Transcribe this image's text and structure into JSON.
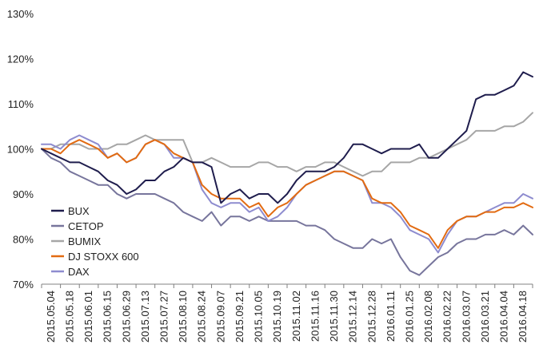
{
  "chart_data": {
    "type": "line",
    "xlabel": "",
    "ylabel": "",
    "ylim": [
      70,
      130
    ],
    "yticks": [
      70,
      80,
      90,
      100,
      110,
      120,
      130
    ],
    "ytick_labels": [
      "70%",
      "80%",
      "90%",
      "100%",
      "110%",
      "120%",
      "130%"
    ],
    "xlim": [
      0,
      52
    ],
    "xtick_labels": [
      "2015.05.04",
      "2015.05.18",
      "2015.06.01",
      "2015.06.15",
      "2015.06.29",
      "2015.07.13",
      "2015.07.27",
      "2015.08.10",
      "2015.08.24",
      "2015.09.07",
      "2015.09.21",
      "2015.10.05",
      "2015.10.19",
      "2015.11.02",
      "2015.11.16",
      "2015.11.30",
      "2015.12.14",
      "2015.12.28",
      "2016.01.11",
      "2016.01.25",
      "2016.02.08",
      "2016.02.22",
      "2016.03.07",
      "2016.03.21",
      "2016.04.04",
      "2016.04.18"
    ],
    "grid": false,
    "legend_position": "left",
    "series": [
      {
        "name": "BUX",
        "color": "#1f1d4d",
        "x": [
          0,
          1,
          2,
          3,
          4,
          5,
          6,
          7,
          8,
          9,
          10,
          11,
          12,
          13,
          14,
          15,
          16,
          17,
          18,
          19,
          20,
          21,
          22,
          23,
          24,
          25,
          26,
          27,
          28,
          29,
          30,
          31,
          32,
          33,
          34,
          35,
          36,
          37,
          38,
          39,
          40,
          41,
          42,
          43,
          44,
          45,
          46,
          47,
          48,
          49,
          50,
          51,
          52
        ],
        "values": [
          100,
          99,
          98,
          97,
          97,
          96,
          95,
          93,
          92,
          90,
          91,
          93,
          93,
          95,
          96,
          98,
          97,
          97,
          96,
          88,
          90,
          91,
          89,
          90,
          90,
          88,
          90,
          93,
          95,
          95,
          95,
          96,
          98,
          101,
          101,
          100,
          99,
          100,
          100,
          100,
          101,
          98,
          98,
          100,
          102,
          104,
          111,
          112,
          112,
          113,
          114,
          117,
          116
        ]
      },
      {
        "name": "CETOP",
        "color": "#77759c",
        "x": [
          0,
          1,
          2,
          3,
          4,
          5,
          6,
          7,
          8,
          9,
          10,
          11,
          12,
          13,
          14,
          15,
          16,
          17,
          18,
          19,
          20,
          21,
          22,
          23,
          24,
          25,
          26,
          27,
          28,
          29,
          30,
          31,
          32,
          33,
          34,
          35,
          36,
          37,
          38,
          39,
          40,
          41,
          42,
          43,
          44,
          45,
          46,
          47,
          48,
          49,
          50,
          51,
          52
        ],
        "values": [
          100,
          98,
          97,
          95,
          94,
          93,
          92,
          92,
          90,
          89,
          90,
          90,
          90,
          89,
          88,
          86,
          85,
          84,
          86,
          83,
          85,
          85,
          84,
          85,
          84,
          84,
          84,
          84,
          83,
          83,
          82,
          80,
          79,
          78,
          78,
          80,
          79,
          80,
          76,
          73,
          72,
          74,
          76,
          77,
          79,
          80,
          80,
          81,
          81,
          82,
          81,
          83,
          81
        ]
      },
      {
        "name": "BUMIX",
        "color": "#a6a6a6",
        "x": [
          0,
          1,
          2,
          3,
          4,
          5,
          6,
          7,
          8,
          9,
          10,
          11,
          12,
          13,
          14,
          15,
          16,
          17,
          18,
          19,
          20,
          21,
          22,
          23,
          24,
          25,
          26,
          27,
          28,
          29,
          30,
          31,
          32,
          33,
          34,
          35,
          36,
          37,
          38,
          39,
          40,
          41,
          42,
          43,
          44,
          45,
          46,
          47,
          48,
          49,
          50,
          51,
          52
        ],
        "values": [
          100,
          100,
          101,
          101,
          101,
          100,
          100,
          100,
          101,
          101,
          102,
          103,
          102,
          102,
          102,
          102,
          97,
          97,
          98,
          97,
          96,
          96,
          96,
          97,
          97,
          96,
          96,
          95,
          96,
          96,
          97,
          97,
          96,
          95,
          94,
          95,
          95,
          97,
          97,
          97,
          98,
          98,
          99,
          100,
          101,
          102,
          104,
          104,
          104,
          105,
          105,
          106,
          108
        ]
      },
      {
        "name": "DJ STOXX 600",
        "color": "#e26b12",
        "x": [
          0,
          1,
          2,
          3,
          4,
          5,
          6,
          7,
          8,
          9,
          10,
          11,
          12,
          13,
          14,
          15,
          16,
          17,
          18,
          19,
          20,
          21,
          22,
          23,
          24,
          25,
          26,
          27,
          28,
          29,
          30,
          31,
          32,
          33,
          34,
          35,
          36,
          37,
          38,
          39,
          40,
          41,
          42,
          43,
          44,
          45,
          46,
          47,
          48,
          49,
          50,
          51,
          52
        ],
        "values": [
          100,
          100,
          99,
          101,
          102,
          101,
          100,
          98,
          99,
          97,
          98,
          101,
          102,
          101,
          99,
          98,
          97,
          92,
          90,
          89,
          89,
          89,
          87,
          88,
          85,
          87,
          88,
          90,
          92,
          93,
          94,
          95,
          95,
          94,
          93,
          89,
          88,
          88,
          86,
          83,
          82,
          81,
          78,
          82,
          84,
          85,
          85,
          86,
          86,
          87,
          87,
          88,
          87
        ]
      },
      {
        "name": "DAX",
        "color": "#8e8ccf",
        "x": [
          0,
          1,
          2,
          3,
          4,
          5,
          6,
          7,
          8,
          9,
          10,
          11,
          12,
          13,
          14,
          15,
          16,
          17,
          18,
          19,
          20,
          21,
          22,
          23,
          24,
          25,
          26,
          27,
          28,
          29,
          30,
          31,
          32,
          33,
          34,
          35,
          36,
          37,
          38,
          39,
          40,
          41,
          42,
          43,
          44,
          45,
          46,
          47,
          48,
          49,
          50,
          51,
          52
        ],
        "values": [
          101,
          101,
          100,
          102,
          103,
          102,
          101,
          98,
          99,
          97,
          98,
          101,
          102,
          101,
          98,
          98,
          97,
          91,
          88,
          87,
          88,
          88,
          86,
          87,
          84,
          85,
          87,
          90,
          92,
          93,
          94,
          95,
          95,
          94,
          93,
          88,
          88,
          87,
          85,
          82,
          81,
          80,
          77,
          81,
          84,
          85,
          85,
          86,
          87,
          88,
          88,
          90,
          89
        ]
      }
    ]
  }
}
